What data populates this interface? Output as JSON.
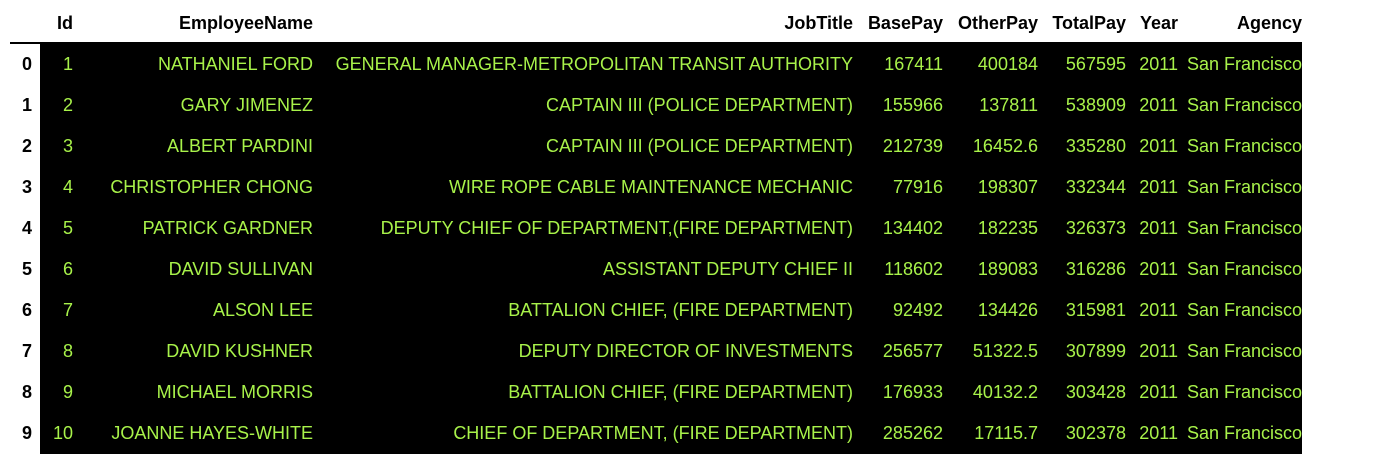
{
  "table": {
    "columns": [
      "Id",
      "EmployeeName",
      "JobTitle",
      "BasePay",
      "OtherPay",
      "TotalPay",
      "Year",
      "Agency"
    ],
    "rows": [
      {
        "index": "0",
        "cells": [
          "1",
          "NATHANIEL FORD",
          "GENERAL MANAGER-METROPOLITAN TRANSIT AUTHORITY",
          "167411",
          "400184",
          "567595",
          "2011",
          "San Francisco"
        ]
      },
      {
        "index": "1",
        "cells": [
          "2",
          "GARY JIMENEZ",
          "CAPTAIN III (POLICE DEPARTMENT)",
          "155966",
          "137811",
          "538909",
          "2011",
          "San Francisco"
        ]
      },
      {
        "index": "2",
        "cells": [
          "3",
          "ALBERT PARDINI",
          "CAPTAIN III (POLICE DEPARTMENT)",
          "212739",
          "16452.6",
          "335280",
          "2011",
          "San Francisco"
        ]
      },
      {
        "index": "3",
        "cells": [
          "4",
          "CHRISTOPHER CHONG",
          "WIRE ROPE CABLE MAINTENANCE MECHANIC",
          "77916",
          "198307",
          "332344",
          "2011",
          "San Francisco"
        ]
      },
      {
        "index": "4",
        "cells": [
          "5",
          "PATRICK GARDNER",
          "DEPUTY CHIEF OF DEPARTMENT,(FIRE DEPARTMENT)",
          "134402",
          "182235",
          "326373",
          "2011",
          "San Francisco"
        ]
      },
      {
        "index": "5",
        "cells": [
          "6",
          "DAVID SULLIVAN",
          "ASSISTANT DEPUTY CHIEF II",
          "118602",
          "189083",
          "316286",
          "2011",
          "San Francisco"
        ]
      },
      {
        "index": "6",
        "cells": [
          "7",
          "ALSON LEE",
          "BATTALION CHIEF, (FIRE DEPARTMENT)",
          "92492",
          "134426",
          "315981",
          "2011",
          "San Francisco"
        ]
      },
      {
        "index": "7",
        "cells": [
          "8",
          "DAVID KUSHNER",
          "DEPUTY DIRECTOR OF INVESTMENTS",
          "256577",
          "51322.5",
          "307899",
          "2011",
          "San Francisco"
        ]
      },
      {
        "index": "8",
        "cells": [
          "9",
          "MICHAEL MORRIS",
          "BATTALION CHIEF, (FIRE DEPARTMENT)",
          "176933",
          "40132.2",
          "303428",
          "2011",
          "San Francisco"
        ]
      },
      {
        "index": "9",
        "cells": [
          "10",
          "JOANNE HAYES-WHITE",
          "CHIEF OF DEPARTMENT, (FIRE DEPARTMENT)",
          "285262",
          "17115.7",
          "302378",
          "2011",
          "San Francisco"
        ]
      }
    ]
  },
  "colors": {
    "cell_background": "#000000",
    "cell_text": "#a8f24a",
    "header_text": "#000000",
    "page_background": "#ffffff"
  }
}
